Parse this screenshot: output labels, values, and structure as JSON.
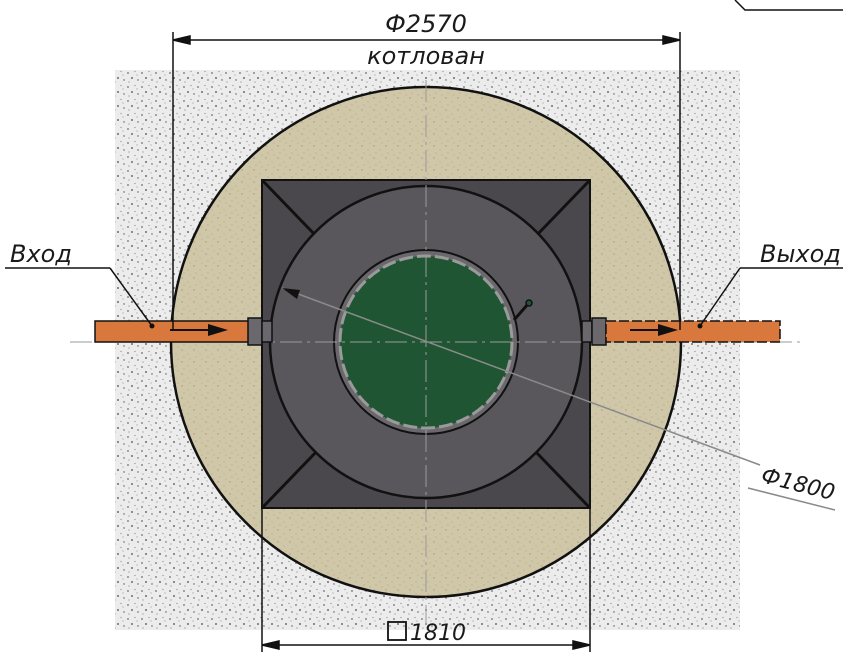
{
  "labels": {
    "pit_diameter": "Ф2570",
    "pit_caption": "котлован",
    "ring_diameter": "Ф1800",
    "base_size": "1810",
    "inlet": "Вход",
    "outlet": "Выход"
  },
  "colors": {
    "soil": "#ececec",
    "soil_speckle": "#6e6e6e",
    "sand_backfill": "#cfc7a8",
    "concrete_base": "#4a484c",
    "well_ring": "#59575b",
    "hatch_cover": "#1f5532",
    "pipe": "#d8783c",
    "line": "#111111"
  },
  "icons": {
    "flow_arrow": "arrow-right-icon",
    "base_square": "square-symbol-icon"
  }
}
